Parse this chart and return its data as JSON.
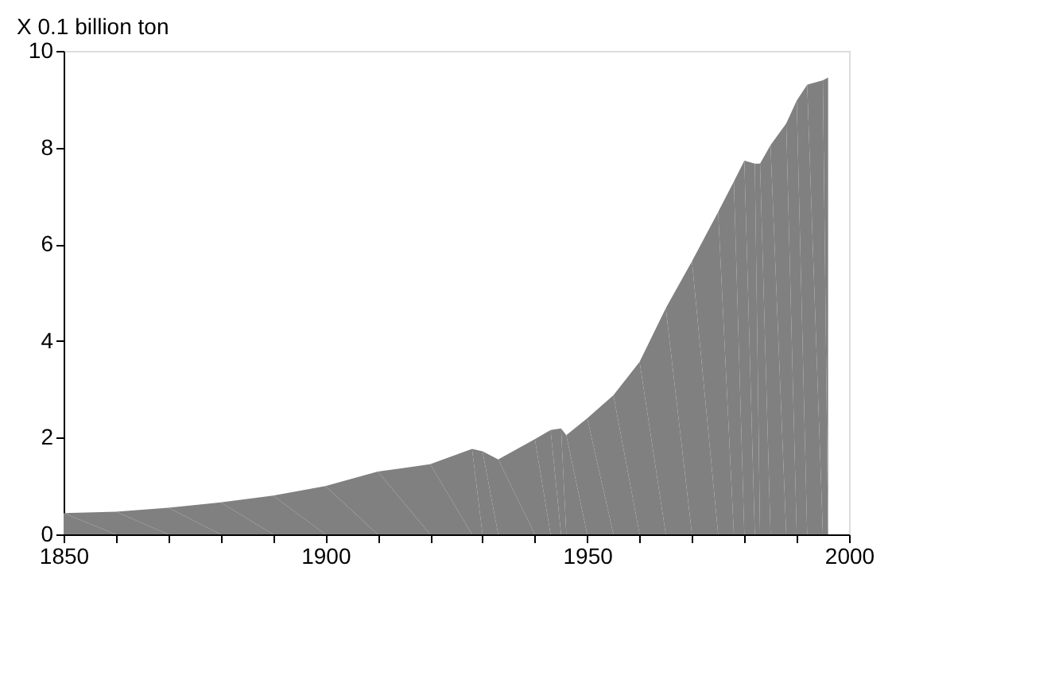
{
  "chart_data": {
    "type": "area",
    "ylabel": "X 0.1 billion ton",
    "x": [
      1850,
      1860,
      1870,
      1880,
      1890,
      1900,
      1910,
      1920,
      1928,
      1930,
      1933,
      1940,
      1943,
      1945,
      1946,
      1950,
      1955,
      1960,
      1965,
      1970,
      1975,
      1978,
      1980,
      1982,
      1983,
      1985,
      1988,
      1990,
      1992,
      1995,
      1996
    ],
    "series": [
      {
        "color": "#808080",
        "values": [
          0.44,
          0.47,
          0.55,
          0.66,
          0.8,
          1.0,
          1.3,
          1.45,
          1.77,
          1.72,
          1.55,
          1.97,
          2.16,
          2.19,
          2.05,
          2.4,
          2.88,
          3.57,
          4.68,
          5.65,
          6.67,
          7.3,
          7.73,
          7.67,
          7.67,
          8.05,
          8.5,
          8.97,
          9.3,
          9.39,
          9.45
        ]
      }
    ],
    "xlim": [
      1850,
      2000
    ],
    "xticks": [
      1850,
      {
        "value": 1860,
        "label": null
      },
      {
        "value": 1870,
        "label": null
      },
      {
        "value": 1880,
        "label": null
      },
      {
        "value": 1890,
        "label": null
      },
      1900,
      {
        "value": 1910,
        "label": null
      },
      {
        "value": 1920,
        "label": null
      },
      {
        "value": 1930,
        "label": null
      },
      {
        "value": 1940,
        "label": null
      },
      1950,
      {
        "value": 1960,
        "label": null
      },
      {
        "value": 1970,
        "label": null
      },
      {
        "value": 1980,
        "label": null
      },
      {
        "value": 1990,
        "label": null
      },
      2000
    ],
    "ylim": [
      0,
      10
    ],
    "yticks": [
      0,
      2,
      4,
      6,
      8,
      10
    ],
    "grid": false,
    "legend": false
  }
}
